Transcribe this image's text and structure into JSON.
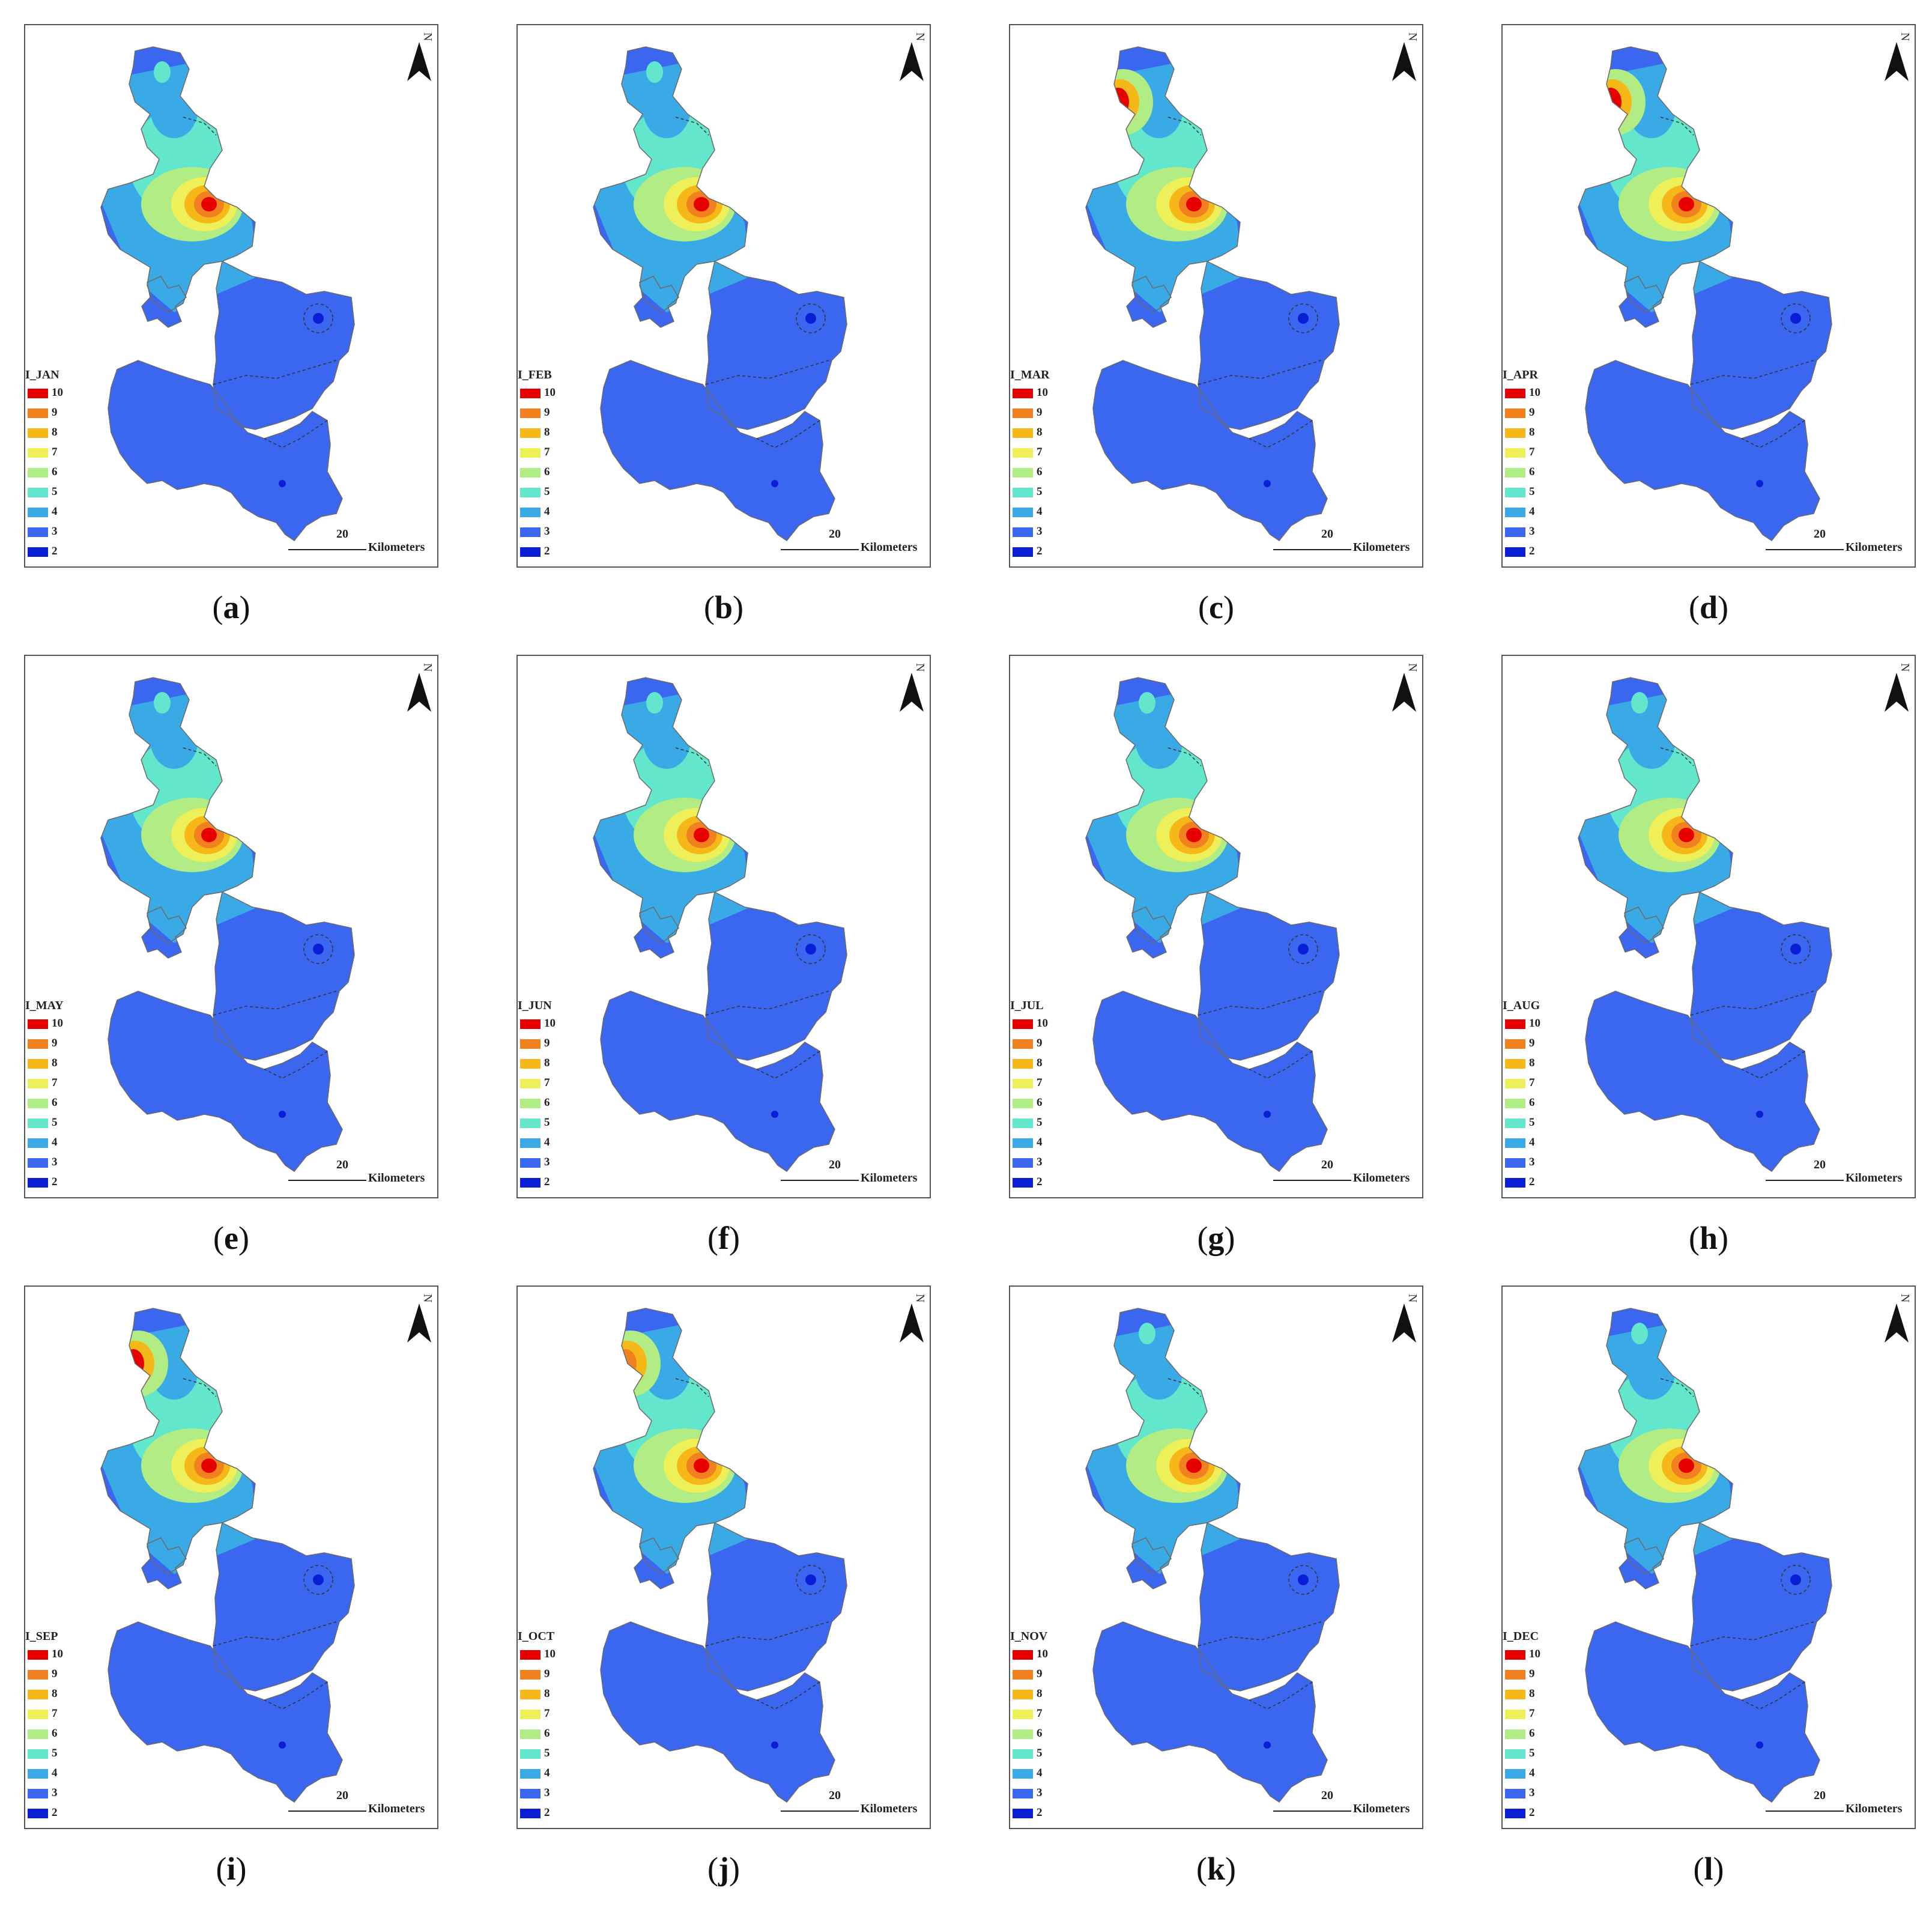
{
  "panels": [
    {
      "month": "I_JAN",
      "caption_letter": "a"
    },
    {
      "month": "I_FEB",
      "caption_letter": "b"
    },
    {
      "month": "I_MAR",
      "caption_letter": "c"
    },
    {
      "month": "I_APR",
      "caption_letter": "d"
    },
    {
      "month": "I_MAY",
      "caption_letter": "e"
    },
    {
      "month": "I_JUN",
      "caption_letter": "f"
    },
    {
      "month": "I_JUL",
      "caption_letter": "g"
    },
    {
      "month": "I_AUG",
      "caption_letter": "h"
    },
    {
      "month": "I_SEP",
      "caption_letter": "i"
    },
    {
      "month": "I_OCT",
      "caption_letter": "j"
    },
    {
      "month": "I_NOV",
      "caption_letter": "k"
    },
    {
      "month": "I_DEC",
      "caption_letter": "l"
    }
  ],
  "legend": {
    "levels": [
      {
        "value": "10",
        "color": "#e60000"
      },
      {
        "value": "9",
        "color": "#f08020"
      },
      {
        "value": "8",
        "color": "#f6b818"
      },
      {
        "value": "7",
        "color": "#eef05a"
      },
      {
        "value": "6",
        "color": "#b2ec84"
      },
      {
        "value": "5",
        "color": "#62e6cc"
      },
      {
        "value": "4",
        "color": "#3aaae6"
      },
      {
        "value": "3",
        "color": "#3a66f0"
      },
      {
        "value": "2",
        "color": "#0a1ed6"
      }
    ]
  },
  "scale_bar": {
    "value": "20",
    "unit": "Kilometers"
  },
  "north_label": "N"
}
